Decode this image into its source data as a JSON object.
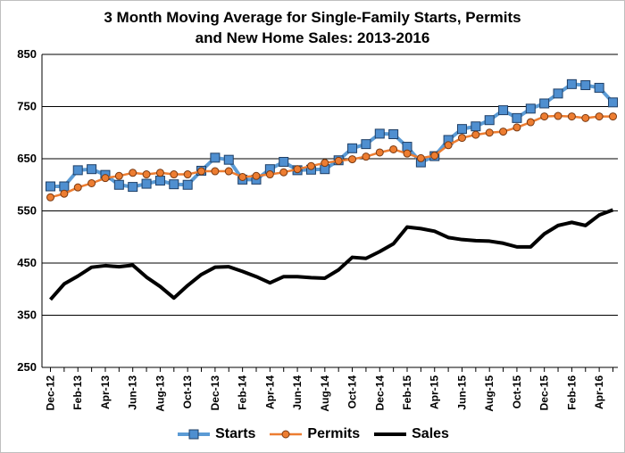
{
  "chart_data": {
    "type": "line",
    "title_lines": [
      "3 Month Moving Average for Single-Family Starts, Permits",
      "and New Home Sales: 2013-2016"
    ],
    "ylim": [
      250,
      850
    ],
    "yticks": [
      250,
      350,
      450,
      550,
      650,
      750,
      850
    ],
    "grid": true,
    "legend_position": "bottom",
    "x": [
      "Dec-12",
      "Jan-13",
      "Feb-13",
      "Mar-13",
      "Apr-13",
      "May-13",
      "Jun-13",
      "Jul-13",
      "Aug-13",
      "Sep-13",
      "Oct-13",
      "Nov-13",
      "Dec-13",
      "Jan-14",
      "Feb-14",
      "Mar-14",
      "Apr-14",
      "May-14",
      "Jun-14",
      "Jul-14",
      "Aug-14",
      "Sep-14",
      "Oct-14",
      "Nov-14",
      "Dec-14",
      "Jan-15",
      "Feb-15",
      "Mar-15",
      "Apr-15",
      "May-15",
      "Jun-15",
      "Jul-15",
      "Aug-15",
      "Sep-15",
      "Oct-15",
      "Nov-15",
      "Dec-15",
      "Jan-16",
      "Feb-16",
      "Mar-16",
      "Apr-16",
      "May-16"
    ],
    "x_tick_labels": [
      "Dec-12",
      "Feb-13",
      "Apr-13",
      "Jun-13",
      "Aug-13",
      "Oct-13",
      "Dec-13",
      "Feb-14",
      "Apr-14",
      "Jun-14",
      "Aug-14",
      "Oct-14",
      "Dec-14",
      "Feb-15",
      "Apr-15",
      "Jun-15",
      "Aug-15",
      "Oct-15",
      "Dec-15",
      "Feb-16",
      "Apr-16"
    ],
    "series": [
      {
        "name": "Starts",
        "color": "#5b9bd5",
        "marker": "square",
        "marker_color": "#4f8fd0",
        "values": [
          597,
          597,
          628,
          630,
          619,
          600,
          596,
          602,
          608,
          601,
          600,
          627,
          652,
          648,
          610,
          610,
          630,
          644,
          628,
          629,
          630,
          647,
          670,
          678,
          698,
          697,
          673,
          643,
          655,
          686,
          707,
          712,
          724,
          743,
          728,
          746,
          756,
          775,
          793,
          791,
          786,
          758
        ]
      },
      {
        "name": "Permits",
        "color": "#ed7d31",
        "marker": "circle",
        "marker_color": "#ed7d31",
        "values": [
          576,
          583,
          595,
          603,
          613,
          617,
          623,
          620,
          623,
          620,
          620,
          626,
          626,
          626,
          615,
          617,
          620,
          624,
          630,
          636,
          642,
          646,
          649,
          654,
          662,
          668,
          660,
          651,
          656,
          676,
          690,
          696,
          700,
          702,
          710,
          720,
          731,
          732,
          731,
          728,
          731,
          731
        ]
      },
      {
        "name": "Sales",
        "color": "#000000",
        "marker": "none",
        "values": [
          380,
          410,
          425,
          442,
          445,
          443,
          446,
          423,
          405,
          383,
          407,
          428,
          442,
          443,
          434,
          424,
          412,
          424,
          424,
          422,
          421,
          437,
          461,
          459,
          472,
          487,
          519,
          516,
          511,
          499,
          495,
          493,
          492,
          488,
          481,
          481,
          506,
          522,
          528,
          522,
          542,
          552
        ]
      }
    ]
  }
}
